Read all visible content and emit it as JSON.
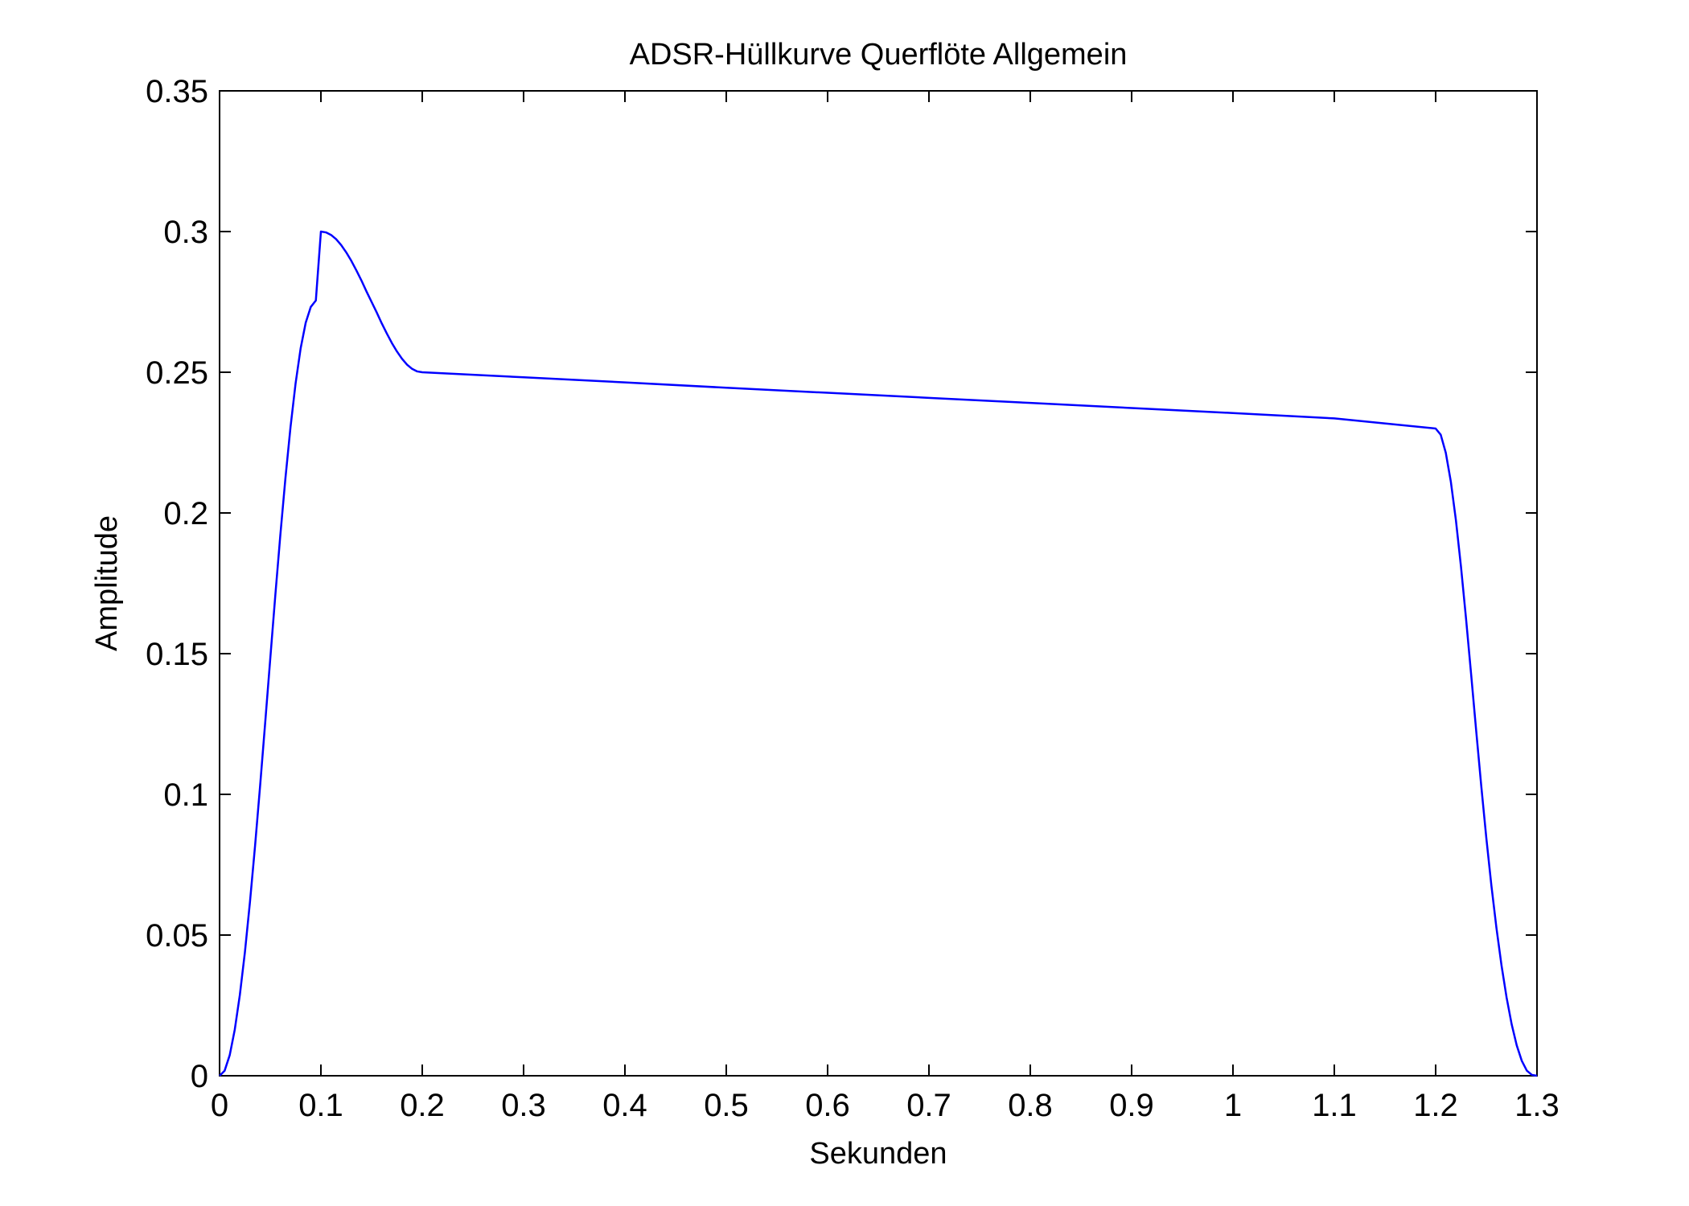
{
  "chart_data": {
    "type": "line",
    "title": "ADSR-Hüllkurve Querflöte Allgemein",
    "xlabel": "Sekunden",
    "ylabel": "Amplitude",
    "xlim": [
      0,
      1.3
    ],
    "ylim": [
      0,
      0.35
    ],
    "grid": false,
    "x_ticks": [
      0,
      0.1,
      0.2,
      0.3,
      0.4,
      0.5,
      0.6,
      0.7,
      0.8,
      0.9,
      1.0,
      1.1,
      1.2,
      1.3
    ],
    "x_tick_labels": [
      "0",
      "0.1",
      "0.2",
      "0.3",
      "0.4",
      "0.5",
      "0.6",
      "0.7",
      "0.8",
      "0.9",
      "1",
      "1.1",
      "1.2",
      "1.3"
    ],
    "y_ticks": [
      0,
      0.05,
      0.1,
      0.15,
      0.2,
      0.25,
      0.3,
      0.35
    ],
    "y_tick_labels": [
      "0",
      "0.05",
      "0.1",
      "0.15",
      "0.2",
      "0.25",
      "0.3",
      "0.35"
    ],
    "series": [
      {
        "color": "#0000ff",
        "x": [
          0,
          0.005,
          0.01,
          0.015,
          0.02,
          0.025,
          0.03,
          0.035,
          0.04,
          0.045,
          0.05,
          0.055,
          0.06,
          0.065,
          0.07,
          0.075,
          0.08,
          0.085,
          0.09,
          0.095,
          0.1,
          0.105,
          0.11,
          0.115,
          0.12,
          0.125,
          0.13,
          0.135,
          0.14,
          0.145,
          0.15,
          0.155,
          0.16,
          0.165,
          0.17,
          0.175,
          0.18,
          0.185,
          0.19,
          0.195,
          0.2,
          0.3,
          0.4,
          0.5,
          0.6,
          0.7,
          0.8,
          0.9,
          1.0,
          1.1,
          1.2,
          1.205,
          1.21,
          1.215,
          1.22,
          1.225,
          1.23,
          1.235,
          1.24,
          1.245,
          1.25,
          1.255,
          1.26,
          1.265,
          1.27,
          1.275,
          1.28,
          1.285,
          1.29,
          1.295,
          1.3
        ],
        "y": [
          0,
          0.0018,
          0.0073,
          0.0164,
          0.0287,
          0.0439,
          0.0618,
          0.0816,
          0.103,
          0.1254,
          0.1481,
          0.1707,
          0.1923,
          0.2124,
          0.2305,
          0.246,
          0.2585,
          0.2676,
          0.2732,
          0.2755,
          0.3,
          0.2997,
          0.2988,
          0.2973,
          0.2952,
          0.2926,
          0.2896,
          0.2862,
          0.2826,
          0.2787,
          0.275,
          0.2713,
          0.2674,
          0.2638,
          0.2604,
          0.2574,
          0.2548,
          0.2527,
          0.2512,
          0.2503,
          0.25,
          0.2482,
          0.2464,
          0.2445,
          0.2427,
          0.2409,
          0.2391,
          0.2373,
          0.2355,
          0.2336,
          0.23,
          0.2278,
          0.2214,
          0.2111,
          0.1974,
          0.1809,
          0.1624,
          0.1427,
          0.1226,
          0.103,
          0.0845,
          0.0676,
          0.0525,
          0.0392,
          0.0278,
          0.0183,
          0.0108,
          0.0053,
          0.0018,
          0.0003,
          0
        ]
      }
    ]
  }
}
